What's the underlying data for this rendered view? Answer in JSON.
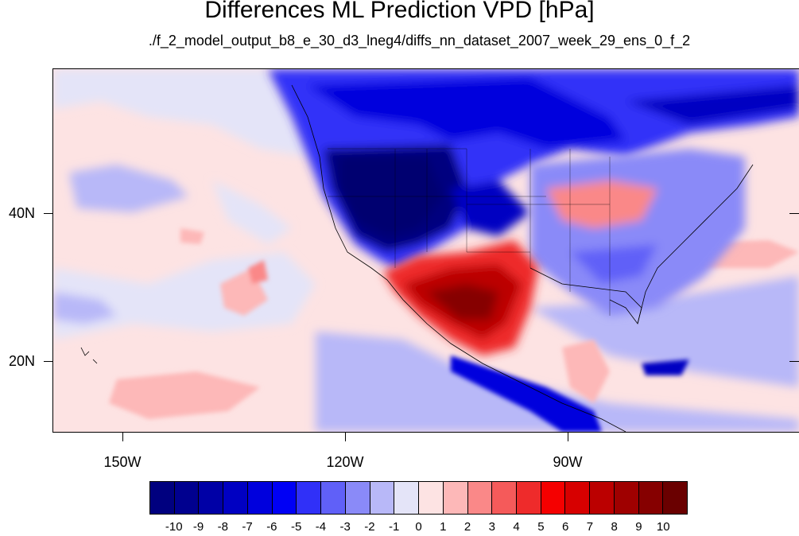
{
  "title": "Differences ML Prediction VPD [hPa]",
  "subtitle": "./f_2_model_output_b8_e_30_d3_lneg4/diffs_nn_dataset_2007_week_29_ens_0_f_2",
  "y_labels": [
    "40N",
    "20N"
  ],
  "x_labels": [
    "150W",
    "120W",
    "90W"
  ],
  "colorbar": {
    "labels": [
      "-10",
      "-9",
      "-8",
      "-7",
      "-6",
      "-5",
      "-4",
      "-3",
      "-2",
      "-1",
      "0",
      "1",
      "2",
      "3",
      "4",
      "5",
      "6",
      "7",
      "8",
      "9",
      "10"
    ],
    "colors": [
      "#00007f",
      "#00008f",
      "#0000a6",
      "#0000c2",
      "#0000dd",
      "#0000f5",
      "#3030f8",
      "#6060f8",
      "#8a8af8",
      "#b8b8f8",
      "#e4e4f8",
      "#fde3e3",
      "#fdb8b8",
      "#fa8888",
      "#f55a5a",
      "#ee2b2b",
      "#f50000",
      "#d70000",
      "#bb0000",
      "#9f0000",
      "#860000",
      "#6a0000"
    ]
  }
}
